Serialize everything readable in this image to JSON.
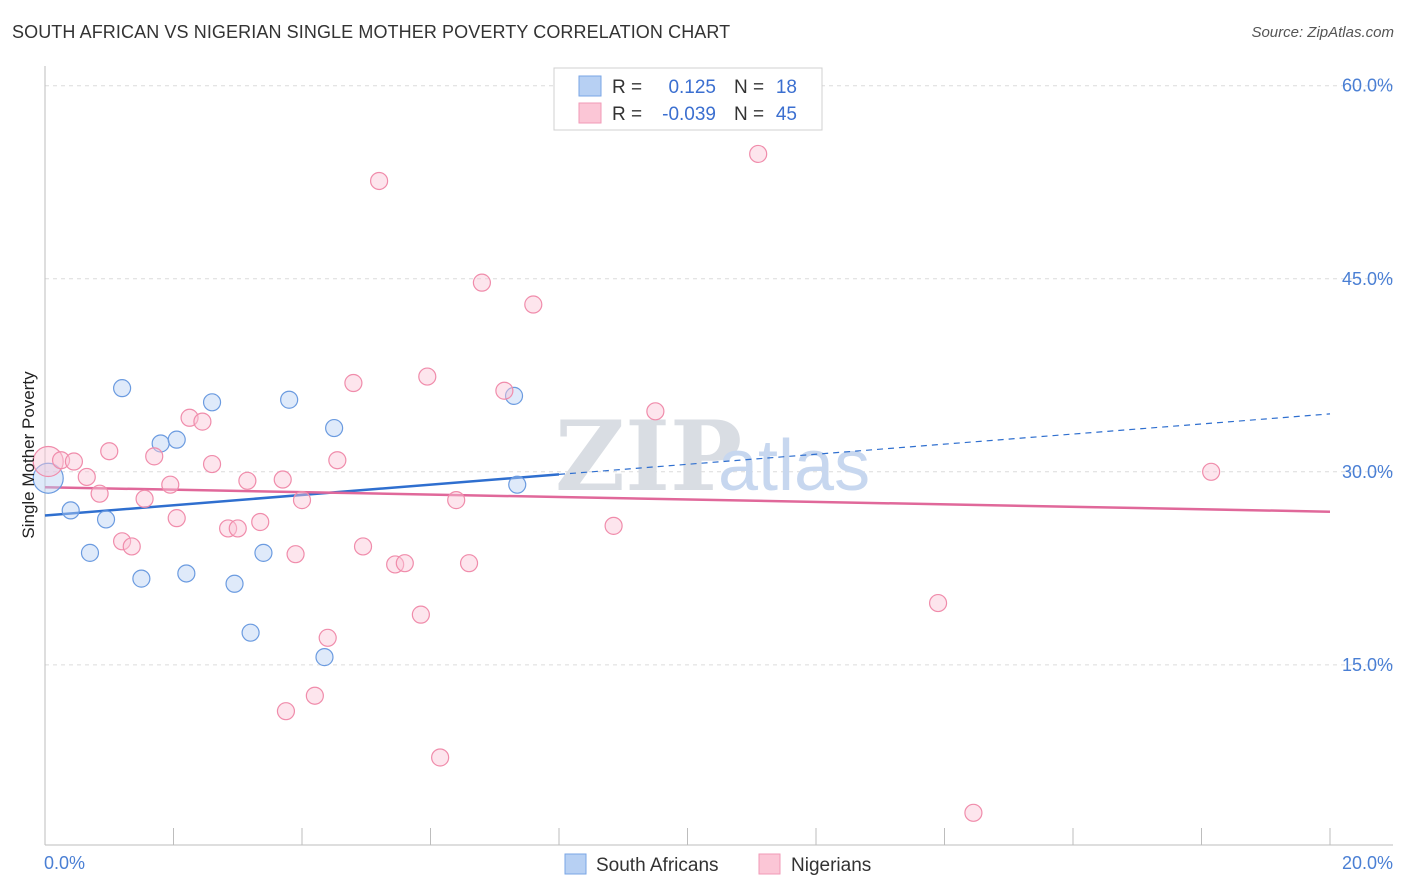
{
  "header": {
    "title": "SOUTH AFRICAN VS NIGERIAN SINGLE MOTHER POVERTY CORRELATION CHART",
    "source": "Source: ZipAtlas.com"
  },
  "watermark": {
    "zip": "ZIP",
    "atlas": "atlas"
  },
  "chart_data": {
    "type": "scatter",
    "title": "SOUTH AFRICAN VS NIGERIAN SINGLE MOTHER POVERTY CORRELATION CHART",
    "xlabel": "",
    "ylabel": "Single Mother Poverty",
    "xlim": [
      0,
      20
    ],
    "ylim": [
      1,
      62
    ],
    "x_tick_labels": {
      "min": "0.0%",
      "max": "20.0%"
    },
    "y_ticks": [
      {
        "value": 15,
        "label": "15.0%"
      },
      {
        "value": 30,
        "label": "30.0%"
      },
      {
        "value": 45,
        "label": "45.0%"
      },
      {
        "value": 60,
        "label": "60.0%"
      }
    ],
    "grid": true,
    "colors": {
      "south_africans": "#6b9be0",
      "nigerians": "#f08cab",
      "sa_line": "#2f6fcf",
      "ng_line": "#e0689a"
    },
    "legend": [
      {
        "name": "South Africans",
        "r_label": "R =",
        "r_value": "0.125",
        "n_label": "N =",
        "n_value": "18"
      },
      {
        "name": "Nigerians",
        "r_label": "R =",
        "r_value": "-0.039",
        "n_label": "N =",
        "n_value": "45"
      }
    ],
    "series": [
      {
        "name": "South Africans",
        "points": [
          [
            0.05,
            29.5
          ],
          [
            0.4,
            27.0
          ],
          [
            0.7,
            23.7
          ],
          [
            0.95,
            26.3
          ],
          [
            1.2,
            36.5
          ],
          [
            1.5,
            21.7
          ],
          [
            1.8,
            32.2
          ],
          [
            2.05,
            32.5
          ],
          [
            2.2,
            22.1
          ],
          [
            2.6,
            35.4
          ],
          [
            2.95,
            21.3
          ],
          [
            3.2,
            17.5
          ],
          [
            3.4,
            23.7
          ],
          [
            3.8,
            35.6
          ],
          [
            4.35,
            15.6
          ],
          [
            4.5,
            33.4
          ],
          [
            7.3,
            35.9
          ],
          [
            7.35,
            29.0
          ]
        ],
        "trend": {
          "x0": 0,
          "y0": 26.6,
          "x1": 8,
          "y1": 29.8,
          "dash_to_x": 20,
          "dash_to_y": 34.5
        }
      },
      {
        "name": "Nigerians",
        "points": [
          [
            0.05,
            30.8
          ],
          [
            0.25,
            30.9
          ],
          [
            0.45,
            30.8
          ],
          [
            0.65,
            29.6
          ],
          [
            0.85,
            28.3
          ],
          [
            1.0,
            31.6
          ],
          [
            1.2,
            24.6
          ],
          [
            1.35,
            24.2
          ],
          [
            1.55,
            27.9
          ],
          [
            1.7,
            31.2
          ],
          [
            1.95,
            29.0
          ],
          [
            2.05,
            26.4
          ],
          [
            2.25,
            34.2
          ],
          [
            2.45,
            33.9
          ],
          [
            2.6,
            30.6
          ],
          [
            2.85,
            25.6
          ],
          [
            3.0,
            25.6
          ],
          [
            3.15,
            29.3
          ],
          [
            3.35,
            26.1
          ],
          [
            3.7,
            29.4
          ],
          [
            3.75,
            11.4
          ],
          [
            3.9,
            23.6
          ],
          [
            4.0,
            27.8
          ],
          [
            4.2,
            12.6
          ],
          [
            4.4,
            17.1
          ],
          [
            4.55,
            30.9
          ],
          [
            4.8,
            36.9
          ],
          [
            4.95,
            24.2
          ],
          [
            5.2,
            52.6
          ],
          [
            5.45,
            22.8
          ],
          [
            5.6,
            22.9
          ],
          [
            5.85,
            18.9
          ],
          [
            5.95,
            37.4
          ],
          [
            6.15,
            7.8
          ],
          [
            6.4,
            27.8
          ],
          [
            6.6,
            22.9
          ],
          [
            6.8,
            44.7
          ],
          [
            7.15,
            36.3
          ],
          [
            7.6,
            43.0
          ],
          [
            8.85,
            25.8
          ],
          [
            9.5,
            34.7
          ],
          [
            11.1,
            54.7
          ],
          [
            13.9,
            19.8
          ],
          [
            14.45,
            3.5
          ],
          [
            18.15,
            30.0
          ]
        ],
        "trend": {
          "x0": 0,
          "y0": 28.8,
          "x1": 20,
          "y1": 26.9
        }
      }
    ]
  }
}
